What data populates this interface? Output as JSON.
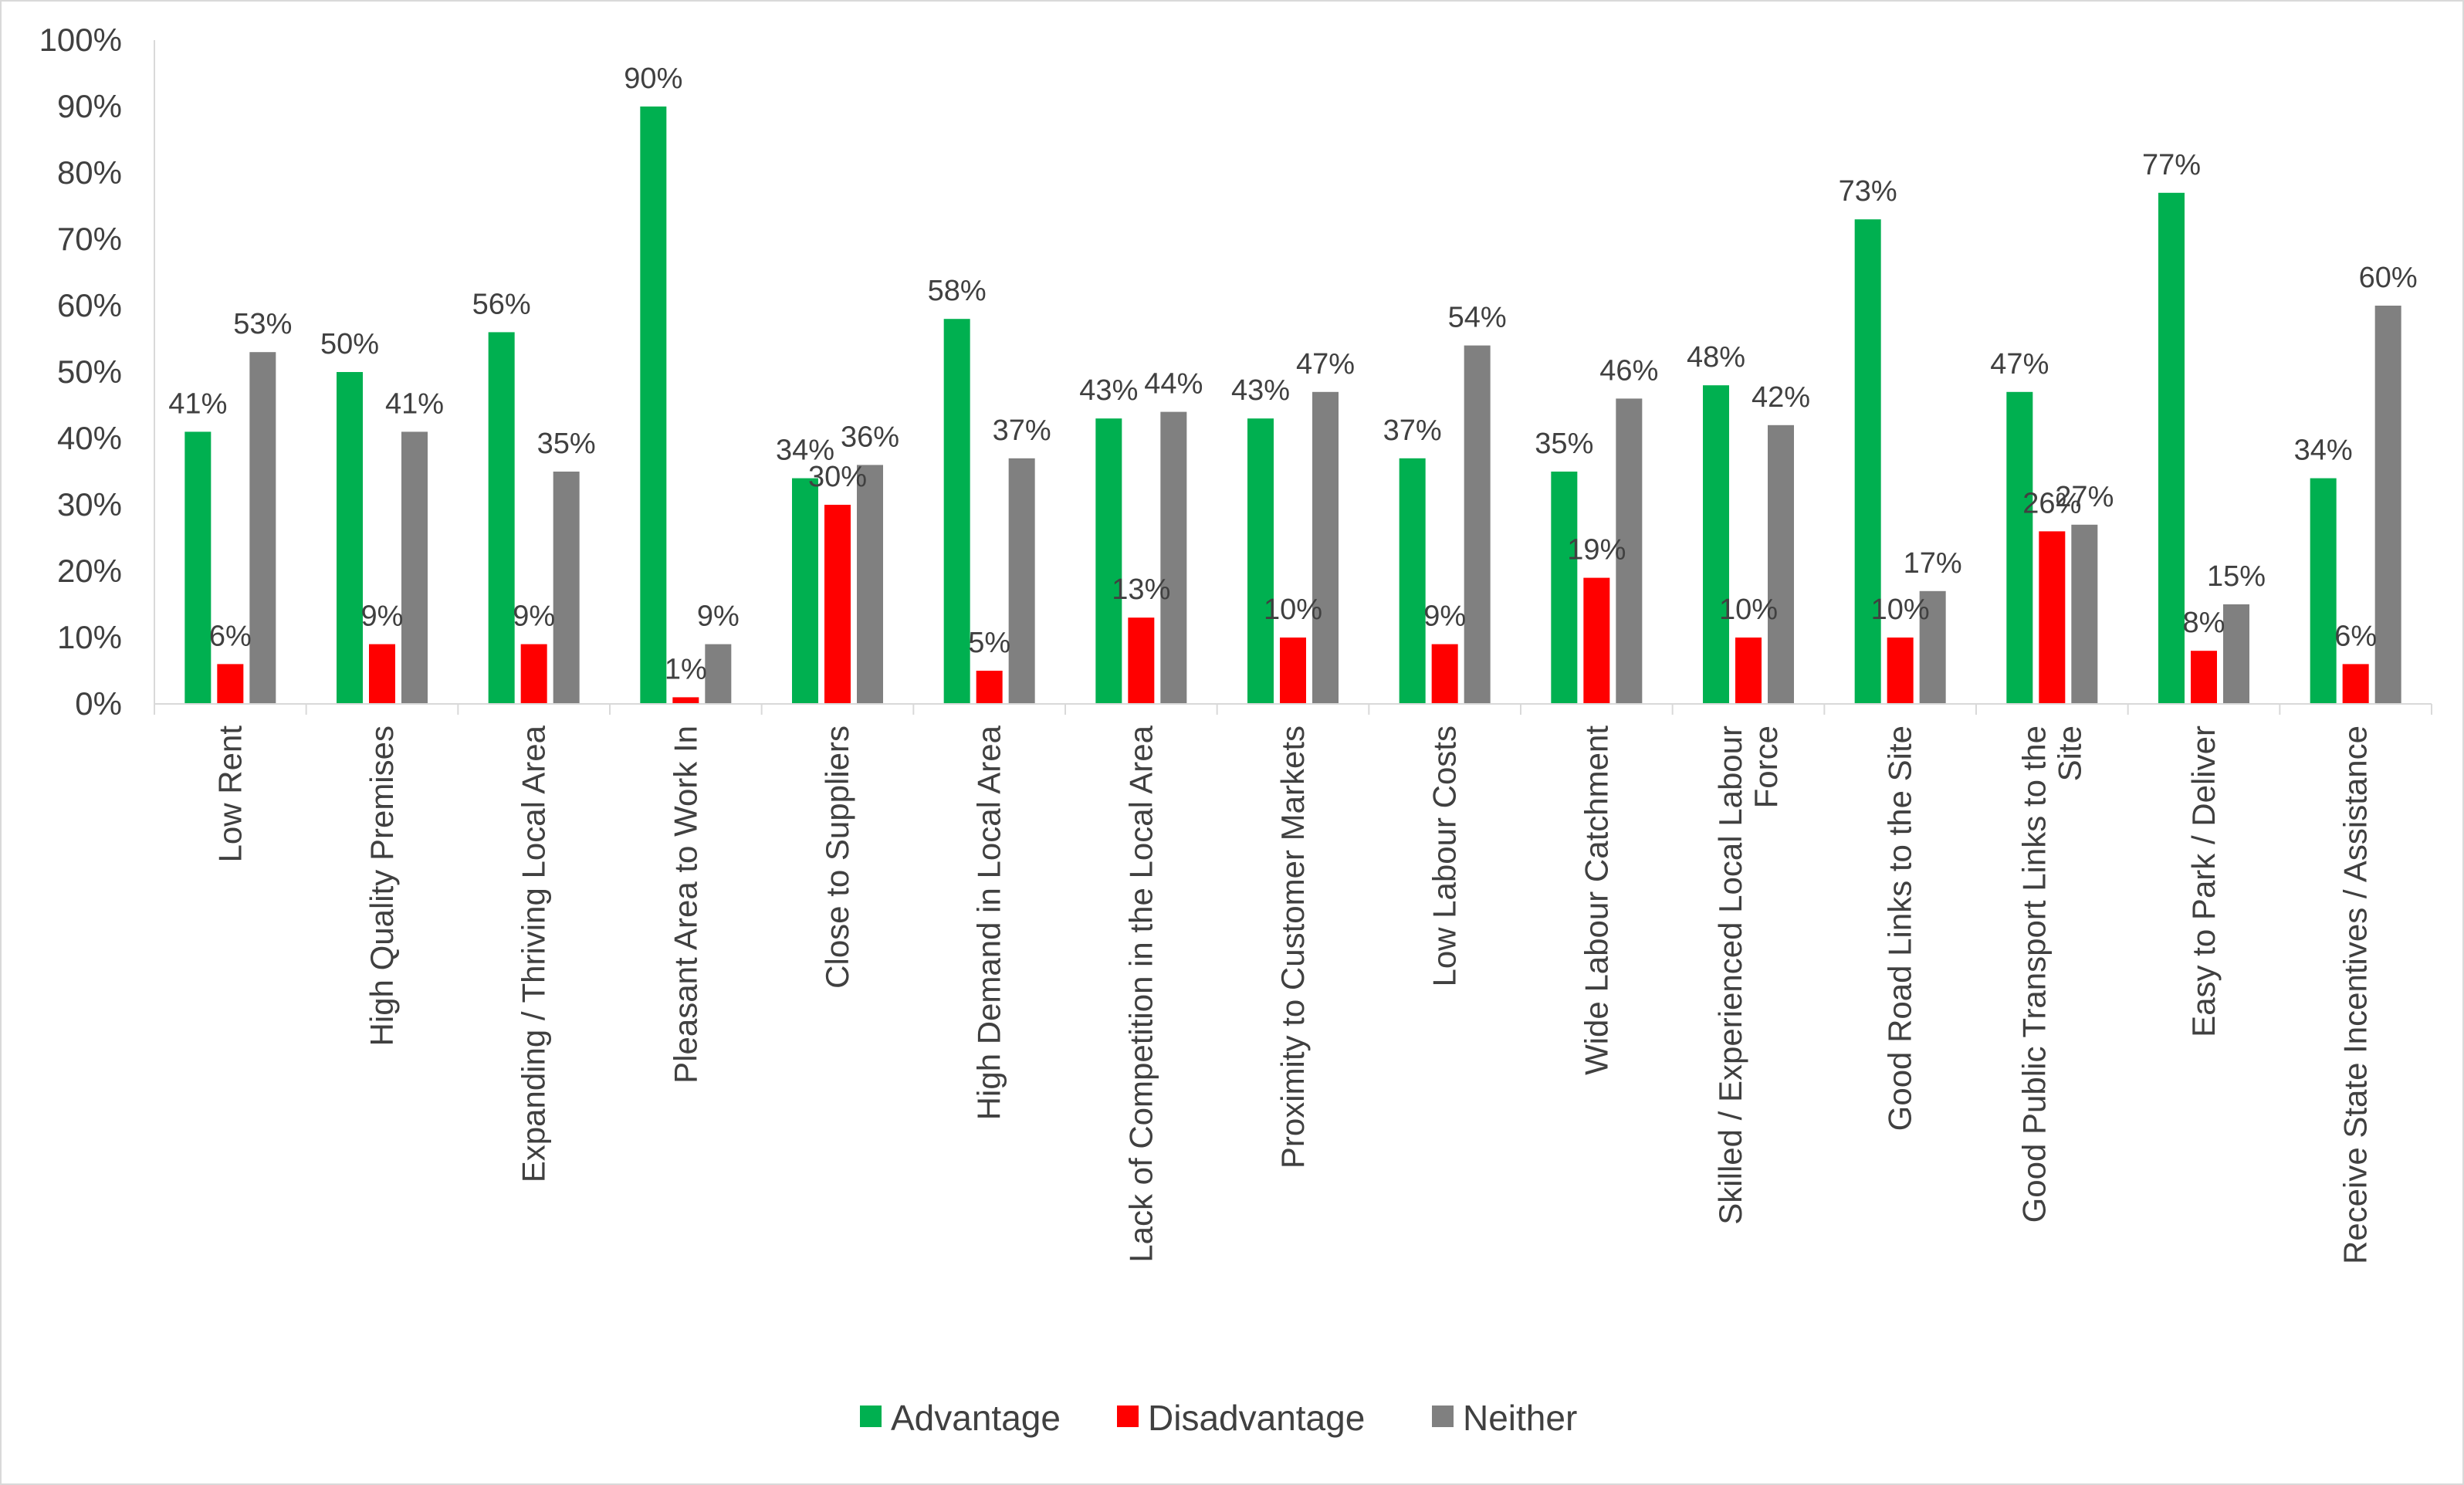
{
  "chart_data": {
    "type": "bar",
    "title": "",
    "xlabel": "",
    "ylabel": "",
    "ylim": [
      0,
      100
    ],
    "y_tick_labels": [
      "0%",
      "10%",
      "20%",
      "30%",
      "40%",
      "50%",
      "60%",
      "70%",
      "80%",
      "90%",
      "100%"
    ],
    "grid": false,
    "legend_position": "bottom",
    "categories": [
      [
        "Low Rent"
      ],
      [
        "High Quality Premises"
      ],
      [
        "Expanding / Thriving Local Area"
      ],
      [
        "Pleasant Area to Work In"
      ],
      [
        "Close to Suppliers"
      ],
      [
        "High Demand in Local Area"
      ],
      [
        "Lack of Competition in the Local Area"
      ],
      [
        "Proximity to Customer Markets"
      ],
      [
        "Low Labour Costs"
      ],
      [
        "Wide Labour Catchment"
      ],
      [
        "Skilled / Experienced Local Labour",
        "Force"
      ],
      [
        "Good Road Links to the Site"
      ],
      [
        "Good Public Transport Links to the",
        "Site"
      ],
      [
        "Easy to Park / Deliver"
      ],
      [
        "Receive State Incentives / Assistance"
      ]
    ],
    "series": [
      {
        "name": "Advantage",
        "color": "#00b050",
        "values": [
          41,
          50,
          56,
          90,
          34,
          58,
          43,
          43,
          37,
          35,
          48,
          73,
          47,
          77,
          34
        ],
        "labels": [
          "41%",
          "50%",
          "56%",
          "90%",
          "34%",
          "58%",
          "43%",
          "43%",
          "37%",
          "35%",
          "48%",
          "73%",
          "47%",
          "77%",
          "34%"
        ]
      },
      {
        "name": "Disadvantage",
        "color": "#ff0000",
        "values": [
          6,
          9,
          9,
          1,
          30,
          5,
          13,
          10,
          9,
          19,
          10,
          10,
          26,
          8,
          6
        ],
        "labels": [
          "6%",
          "9%",
          "9%",
          "1%",
          "30%",
          "5%",
          "13%",
          "10%",
          "9%",
          "19%",
          "10%",
          "10%",
          "26%",
          "8%",
          "6%"
        ]
      },
      {
        "name": "Neither",
        "color": "#808080",
        "values": [
          53,
          41,
          35,
          9,
          36,
          37,
          44,
          47,
          54,
          46,
          42,
          17,
          27,
          15,
          60
        ],
        "labels": [
          "53%",
          "41%",
          "35%",
          "9%",
          "36%",
          "37%",
          "44%",
          "47%",
          "54%",
          "46%",
          "42%",
          "17%",
          "27%",
          "15%",
          "60%"
        ]
      }
    ]
  }
}
